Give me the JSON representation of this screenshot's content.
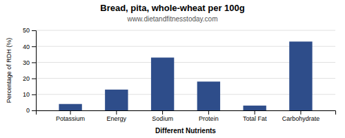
{
  "chart_data": {
    "type": "bar",
    "title": "Bread, pita, whole-wheat per 100g",
    "subtitle": "www.dietandfitnesstoday.com",
    "xlabel": "Different Nutrients",
    "ylabel": "Percentage of RDH (%)",
    "categories": [
      "Potassium",
      "Energy",
      "Sodium",
      "Protein",
      "Total Fat",
      "Carbohydrate"
    ],
    "values": [
      4,
      13,
      33,
      18,
      3,
      43
    ],
    "color": "#2e4d8a",
    "ylim": [
      0,
      50
    ],
    "yticks": [
      0,
      10,
      20,
      30,
      40,
      50
    ],
    "grid": true
  }
}
